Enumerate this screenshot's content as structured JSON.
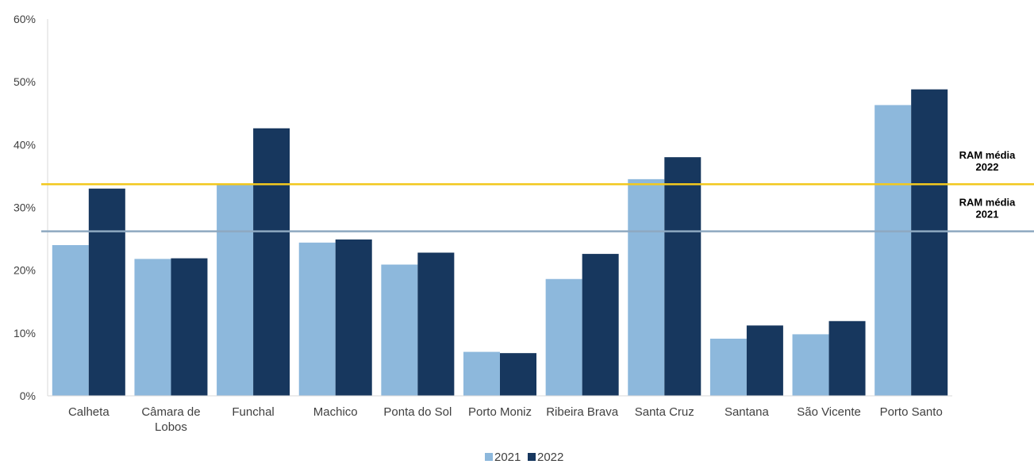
{
  "chart_data": {
    "type": "bar",
    "categories": [
      "Calheta",
      "Câmara de\nLobos",
      "Funchal",
      "Machico",
      "Ponta do Sol",
      "Porto Moniz",
      "Ribeira Brava",
      "Santa Cruz",
      "Santana",
      "São Vicente",
      "Porto Santo"
    ],
    "series": [
      {
        "name": "2021",
        "color": "#8db8dc",
        "values": [
          24.0,
          21.8,
          33.6,
          24.4,
          20.9,
          7.0,
          18.6,
          34.5,
          9.1,
          9.8,
          46.3
        ]
      },
      {
        "name": "2022",
        "color": "#17375e",
        "values": [
          33.0,
          21.9,
          42.6,
          24.9,
          22.8,
          6.8,
          22.6,
          38.0,
          11.2,
          11.9,
          48.8
        ]
      }
    ],
    "y_ticks": [
      "0%",
      "10%",
      "20%",
      "30%",
      "40%",
      "50%",
      "60%"
    ],
    "ylim": [
      0,
      60
    ],
    "reference_lines": [
      {
        "label_line1": "RAM média",
        "label_line2": "2022",
        "value": 33.7,
        "color": "#f2c81f"
      },
      {
        "label_line1": "RAM média",
        "label_line2": "2021",
        "value": 26.2,
        "color": "#8ea9c1"
      }
    ],
    "legend_position": "bottom-center",
    "grid": false,
    "title": "",
    "xlabel": "",
    "ylabel": ""
  }
}
